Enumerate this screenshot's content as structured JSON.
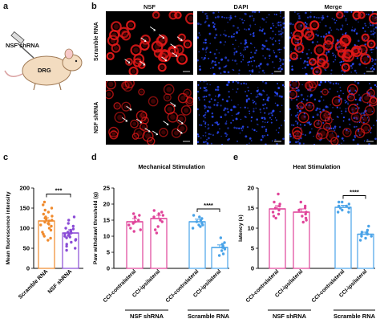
{
  "panels": {
    "a": {
      "letter": "a",
      "injection_label": "NSF shRNA",
      "ganglion_label": "DRG"
    },
    "b": {
      "letter": "b",
      "columns": [
        "NSF",
        "DAPI",
        "Merge"
      ],
      "rows": [
        "Scramble RNA",
        "NSF shRNA"
      ]
    },
    "c": {
      "letter": "c"
    },
    "d": {
      "letter": "d"
    },
    "e": {
      "letter": "e"
    }
  },
  "colors": {
    "nsf_signal": "#e01818",
    "dapi_signal": "#2a4bff",
    "scramble_bar": "#f08a2c",
    "nsf_shrna_bar_c": "#8a4bd6",
    "contralateral_nsf": "#e0449a",
    "blue_group": "#4aa3e8"
  },
  "chart_data": [
    {
      "type": "bar",
      "panel": "c",
      "title": "",
      "xlabel": "",
      "ylabel": "Mean fluorescence intensity",
      "ylim": [
        0,
        200
      ],
      "yticks": [
        0,
        50,
        100,
        150,
        200
      ],
      "categories": [
        "Scramble RNA",
        "NSF shRNA"
      ],
      "values": [
        118,
        88
      ],
      "errors": [
        8,
        8
      ],
      "significance": [
        {
          "pair": [
            0,
            1
          ],
          "label": "***"
        }
      ],
      "points": [
        [
          165,
          158,
          150,
          145,
          140,
          135,
          130,
          128,
          125,
          122,
          120,
          118,
          115,
          112,
          110,
          108,
          105,
          100,
          95,
          90,
          85,
          80,
          75,
          70
        ],
        [
          128,
          120,
          112,
          105,
          100,
          98,
          95,
          92,
          90,
          88,
          86,
          84,
          82,
          80,
          78,
          76,
          72,
          70,
          65,
          60,
          55,
          50,
          45
        ]
      ]
    },
    {
      "type": "bar",
      "panel": "d",
      "title": "Mechanical Stimulation",
      "xlabel": "",
      "ylabel": "Paw withdrawl threshold (g)",
      "ylim": [
        0,
        25
      ],
      "yticks": [
        0,
        5,
        10,
        15,
        20,
        25
      ],
      "categories": [
        "CCI-contralateral",
        "CCI-ipsilateral",
        "CCI-contralateral",
        "CCI-ipsilateral"
      ],
      "groups": [
        "NSF shRNA",
        "Scramble RNA"
      ],
      "values": [
        14.5,
        15.5,
        14.5,
        6.5
      ],
      "errors": [
        1,
        1,
        0.8,
        0.8
      ],
      "significance": [
        {
          "pair": [
            2,
            3
          ],
          "label": "****"
        }
      ],
      "points": [
        [
          17,
          16.5,
          16,
          15,
          14.5,
          14,
          13.5,
          12.5,
          12,
          11.5
        ],
        [
          18,
          17.5,
          17,
          16.5,
          16,
          15,
          14.5,
          13,
          12,
          11
        ],
        [
          16.5,
          16,
          15.5,
          15,
          14.5,
          14,
          13.5,
          13.5,
          13,
          12.5
        ],
        [
          9.5,
          8,
          7.5,
          7,
          6.5,
          6.5,
          6,
          5.5,
          4.5,
          4
        ]
      ]
    },
    {
      "type": "bar",
      "panel": "e",
      "title": "Heat Stimulation",
      "xlabel": "",
      "ylabel": "latency (s)",
      "ylim": [
        0,
        20
      ],
      "yticks": [
        0,
        5,
        10,
        15,
        20
      ],
      "categories": [
        "CCI-contralateral",
        "CCI-ipsilateral",
        "CCI-contralateral",
        "CCI-ipsilateral"
      ],
      "groups": [
        "NSF shRNA",
        "Scramble RNA"
      ],
      "values": [
        14.8,
        14,
        15.2,
        8.5
      ],
      "errors": [
        0.8,
        0.8,
        0.5,
        0.5
      ],
      "significance": [
        {
          "pair": [
            2,
            3
          ],
          "label": "****"
        }
      ],
      "points": [
        [
          18.5,
          16.5,
          16,
          15.5,
          15,
          14.5,
          14,
          13.5,
          13,
          12.5
        ],
        [
          16.5,
          15.5,
          15,
          14.5,
          14,
          13.5,
          13,
          12.5,
          12,
          11.5
        ],
        [
          16.5,
          16.5,
          16,
          15.5,
          15.5,
          15,
          15,
          14.5,
          14,
          14
        ],
        [
          10.5,
          9.5,
          9,
          9,
          8.5,
          8.5,
          8,
          8,
          7.5,
          7
        ]
      ]
    }
  ]
}
